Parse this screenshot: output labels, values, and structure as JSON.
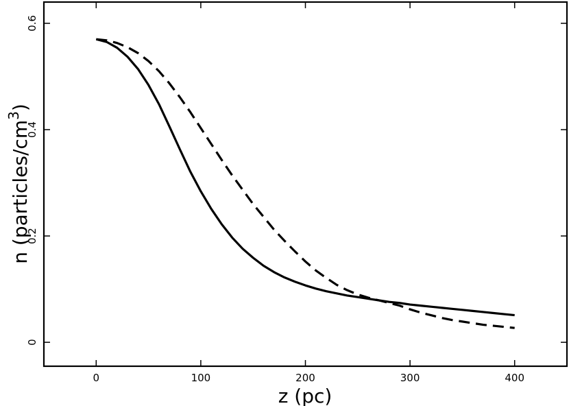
{
  "chart_data": {
    "type": "line",
    "title": "",
    "xlabel": "z (pc)",
    "ylabel": "n (particles/cm",
    "ylabel_superscript": "3",
    "ylabel_close": ")",
    "xlim": [
      -50,
      450
    ],
    "ylim": [
      -0.045,
      0.64
    ],
    "x_ticks": [
      0,
      100,
      200,
      300,
      400
    ],
    "x_tick_labels": [
      "0",
      "100",
      "200",
      "300",
      "400"
    ],
    "y_ticks": [
      0,
      0.2,
      0.4,
      0.6
    ],
    "y_tick_labels": [
      "0",
      "0.2",
      "0.4",
      "0.6"
    ],
    "grid": false,
    "legend": false,
    "series": [
      {
        "style": "solid",
        "color": "#000000",
        "x": [
          0,
          10,
          20,
          30,
          40,
          50,
          60,
          70,
          80,
          90,
          100,
          110,
          120,
          130,
          140,
          150,
          160,
          170,
          180,
          190,
          200,
          210,
          220,
          230,
          240,
          250,
          260,
          270,
          280,
          290,
          300,
          310,
          320,
          330,
          340,
          350,
          360,
          370,
          380,
          390,
          400
        ],
        "y": [
          0.57,
          0.565,
          0.554,
          0.537,
          0.514,
          0.484,
          0.448,
          0.406,
          0.363,
          0.321,
          0.284,
          0.251,
          0.222,
          0.197,
          0.176,
          0.159,
          0.144,
          0.132,
          0.122,
          0.114,
          0.107,
          0.101,
          0.096,
          0.092,
          0.088,
          0.085,
          0.082,
          0.079,
          0.076,
          0.074,
          0.071,
          0.069,
          0.067,
          0.065,
          0.063,
          0.061,
          0.059,
          0.057,
          0.055,
          0.053,
          0.051
        ]
      },
      {
        "style": "dashed",
        "color": "#000000",
        "x": [
          0,
          10,
          20,
          30,
          40,
          50,
          60,
          70,
          80,
          90,
          100,
          110,
          120,
          130,
          140,
          150,
          160,
          170,
          180,
          190,
          200,
          210,
          220,
          230,
          240,
          250,
          260,
          270,
          280,
          290,
          300,
          310,
          320,
          330,
          340,
          350,
          360,
          370,
          380,
          390,
          400
        ],
        "y": [
          0.57,
          0.568,
          0.563,
          0.555,
          0.544,
          0.529,
          0.51,
          0.487,
          0.461,
          0.433,
          0.403,
          0.373,
          0.343,
          0.314,
          0.287,
          0.26,
          0.236,
          0.212,
          0.191,
          0.171,
          0.152,
          0.135,
          0.121,
          0.108,
          0.098,
          0.09,
          0.084,
          0.079,
          0.074,
          0.069,
          0.062,
          0.056,
          0.051,
          0.046,
          0.042,
          0.039,
          0.036,
          0.033,
          0.031,
          0.029,
          0.027
        ]
      }
    ]
  }
}
